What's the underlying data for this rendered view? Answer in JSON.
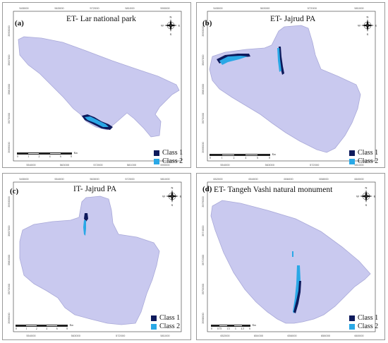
{
  "colors": {
    "region_fill": "#c9c9ef",
    "region_stroke": "#a9a9d8",
    "class1": "#0e1a5c",
    "class2": "#2aa8e6"
  },
  "panels": [
    {
      "id": "a",
      "label": "(a)",
      "title": "ET- Lar national park",
      "legend": [
        "Class 1",
        "Class 2"
      ],
      "scale_unit": "Km",
      "scale_ticks": [
        "0",
        "1",
        "2",
        "4",
        "6",
        "8"
      ],
      "top_ticks": [
        "545000",
        "563000",
        "572000",
        "581000",
        "590000"
      ],
      "bottom_ticks": [
        "554000",
        "563000",
        "572000",
        "581000",
        "590000"
      ],
      "left_ticks": [
        "3993000",
        "3987000",
        "3980000",
        "3973000",
        "3966000"
      ]
    },
    {
      "id": "b",
      "label": "(b)",
      "title": "ET- Jajrud PA",
      "legend": [
        "Class 1",
        "Class 2"
      ],
      "scale_unit": "Km",
      "scale_ticks": [
        "0",
        "1",
        "2",
        "4",
        "6",
        "8"
      ],
      "top_ticks": [
        "545000",
        "563000",
        "572000",
        "581000"
      ],
      "bottom_ticks": [
        "554000",
        "563000",
        "572000",
        "581000"
      ],
      "left_ticks": [
        "3993000",
        "3987000",
        "3980000",
        "3973000",
        "3966000"
      ]
    },
    {
      "id": "c",
      "label": "(c)",
      "title": "IT- Jajrud PA",
      "legend": [
        "Class 1",
        "Class 2"
      ],
      "scale_unit": "Km",
      "scale_ticks": [
        "0",
        "1",
        "2",
        "4",
        "6",
        "8"
      ],
      "top_ticks": [
        "545000",
        "554000",
        "563000",
        "572000",
        "581000"
      ],
      "bottom_ticks": [
        "554000",
        "563000",
        "572000",
        "581000"
      ],
      "left_ticks": [
        "3993000",
        "3987000",
        "3980000",
        "3973000",
        "3966000"
      ]
    },
    {
      "id": "d",
      "label": "(d)",
      "title": "ET- Tangeh Vashi natural monument",
      "legend": [
        "Class 1",
        "Class 2"
      ],
      "scale_unit": "Km",
      "scale_ticks": [
        "0",
        "0.75",
        "1.5",
        "3",
        "4.5",
        "6"
      ],
      "top_ticks": [
        "652000",
        "654000",
        "656000",
        "658000",
        "660000"
      ],
      "bottom_ticks": [
        "652000",
        "654000",
        "656000",
        "658000",
        "660000"
      ],
      "left_ticks": [
        "3976000",
        "3974000",
        "3972000",
        "3970000",
        "3968000"
      ]
    }
  ],
  "compass_letters": [
    "N",
    "E",
    "S",
    "W"
  ]
}
